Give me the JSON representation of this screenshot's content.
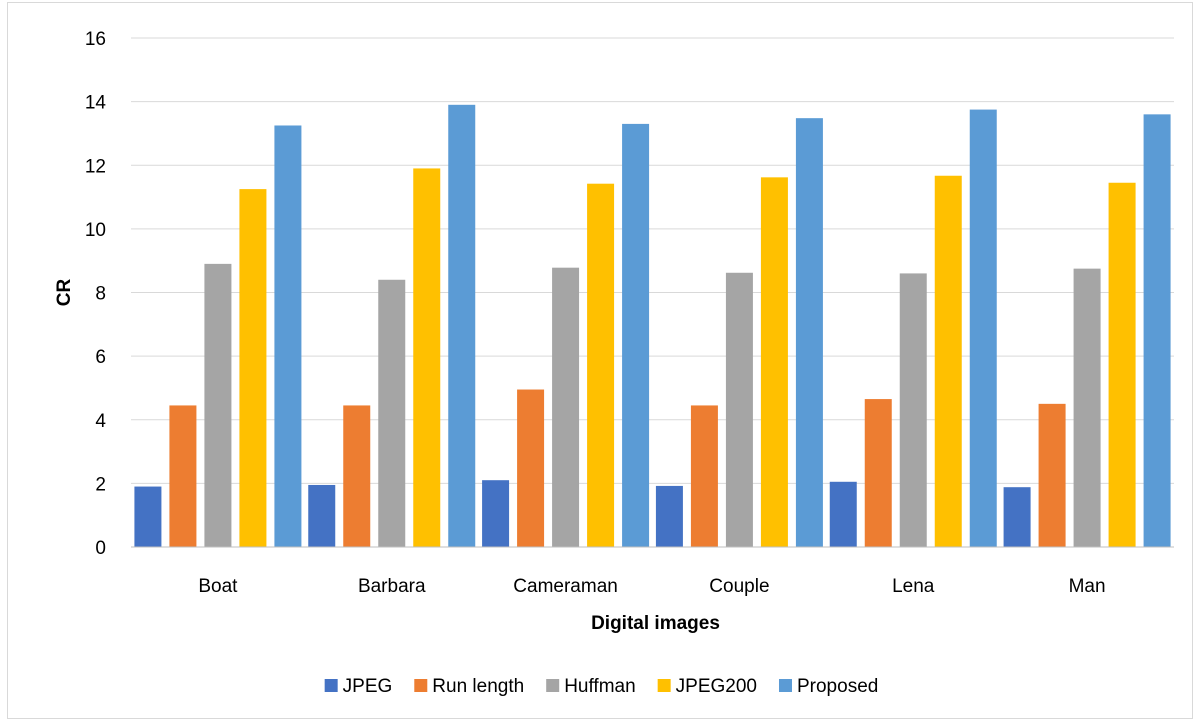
{
  "chart_data": {
    "type": "bar",
    "title": "",
    "xlabel": "Digital images",
    "ylabel": "CR",
    "ylim": [
      0,
      16
    ],
    "yticks": [
      0,
      2,
      4,
      6,
      8,
      10,
      12,
      14,
      16
    ],
    "grid": true,
    "legend_position": "bottom",
    "categories": [
      "Boat",
      "Barbara",
      "Cameraman",
      "Couple",
      "Lena",
      "Man"
    ],
    "series": [
      {
        "name": "JPEG",
        "color": "#4472c4",
        "values": [
          1.9,
          1.95,
          2.1,
          1.92,
          2.05,
          1.88
        ]
      },
      {
        "name": "Run length",
        "color": "#ed7d31",
        "values": [
          4.45,
          4.45,
          4.95,
          4.45,
          4.65,
          4.5
        ]
      },
      {
        "name": "Huffman",
        "color": "#a5a5a5",
        "values": [
          8.9,
          8.4,
          8.78,
          8.62,
          8.6,
          8.75
        ]
      },
      {
        "name": "JPEG200",
        "color": "#ffc000",
        "values": [
          11.25,
          11.9,
          11.42,
          11.62,
          11.67,
          11.45
        ]
      },
      {
        "name": "Proposed",
        "color": "#5b9bd5",
        "values": [
          13.25,
          13.9,
          13.3,
          13.48,
          13.75,
          13.6
        ]
      }
    ]
  }
}
